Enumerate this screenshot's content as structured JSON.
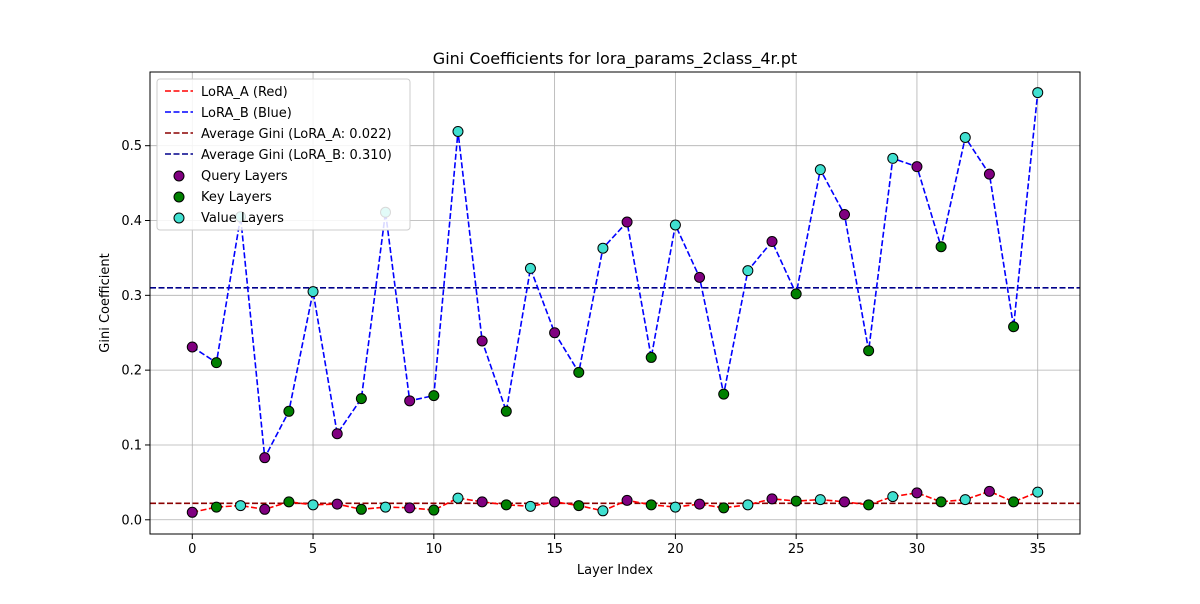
{
  "chart_data": {
    "type": "line",
    "title": "Gini Coefficients for lora_params_2class_4r.pt",
    "xlabel": "Layer Index",
    "ylabel": "Gini Coefficient",
    "xlim": [
      -1.75,
      36.75
    ],
    "ylim": [
      -0.019,
      0.5985
    ],
    "xticks": [
      0,
      5,
      10,
      15,
      20,
      25,
      30,
      35
    ],
    "yticks": [
      0.0,
      0.1,
      0.2,
      0.3,
      0.4,
      0.5
    ],
    "xtick_labels": [
      "0",
      "5",
      "10",
      "15",
      "20",
      "25",
      "30",
      "35"
    ],
    "ytick_labels": [
      "0.0",
      "0.1",
      "0.2",
      "0.3",
      "0.4",
      "0.5"
    ],
    "grid": true,
    "legend_position": "top-left",
    "x": [
      0,
      1,
      2,
      3,
      4,
      5,
      6,
      7,
      8,
      9,
      10,
      11,
      12,
      13,
      14,
      15,
      16,
      17,
      18,
      19,
      20,
      21,
      22,
      23,
      24,
      25,
      26,
      27,
      28,
      29,
      30,
      31,
      32,
      33,
      34,
      35
    ],
    "layer_types": [
      "query",
      "key",
      "value",
      "query",
      "key",
      "value",
      "query",
      "key",
      "value",
      "query",
      "key",
      "value",
      "query",
      "key",
      "value",
      "query",
      "key",
      "value",
      "query",
      "key",
      "value",
      "query",
      "key",
      "value",
      "query",
      "key",
      "value",
      "query",
      "key",
      "value",
      "query",
      "key",
      "value",
      "query",
      "key",
      "value"
    ],
    "series": [
      {
        "name": "LoRA_A (Red)",
        "color": "#ff0000",
        "style": "dashed",
        "values": [
          0.01,
          0.017,
          0.019,
          0.014,
          0.024,
          0.02,
          0.021,
          0.014,
          0.017,
          0.016,
          0.013,
          0.029,
          0.024,
          0.02,
          0.018,
          0.024,
          0.019,
          0.012,
          0.026,
          0.02,
          0.017,
          0.021,
          0.016,
          0.02,
          0.028,
          0.025,
          0.027,
          0.024,
          0.02,
          0.031,
          0.036,
          0.024,
          0.027,
          0.038,
          0.024,
          0.037
        ]
      },
      {
        "name": "LoRA_B (Blue)",
        "color": "#0000ff",
        "style": "dashed",
        "values": [
          0.231,
          0.21,
          0.405,
          0.083,
          0.145,
          0.305,
          0.115,
          0.162,
          0.411,
          0.159,
          0.166,
          0.519,
          0.239,
          0.145,
          0.336,
          0.25,
          0.197,
          0.363,
          0.398,
          0.217,
          0.394,
          0.324,
          0.168,
          0.333,
          0.372,
          0.302,
          0.468,
          0.408,
          0.226,
          0.483,
          0.472,
          0.365,
          0.511,
          0.462,
          0.258,
          0.571
        ]
      }
    ],
    "reference_lines": [
      {
        "name": "Average Gini (LoRA_A: 0.022)",
        "value": 0.022,
        "color": "#8b0000",
        "style": "dashed"
      },
      {
        "name": "Average Gini (LoRA_B: 0.310)",
        "value": 0.31,
        "color": "#00008b",
        "style": "dashed"
      }
    ],
    "marker_groups": [
      {
        "name": "Query Layers",
        "type": "query",
        "color": "#800080"
      },
      {
        "name": "Key Layers",
        "type": "key",
        "color": "#008000"
      },
      {
        "name": "Value Layers",
        "type": "value",
        "color": "#40e0d0"
      }
    ]
  }
}
